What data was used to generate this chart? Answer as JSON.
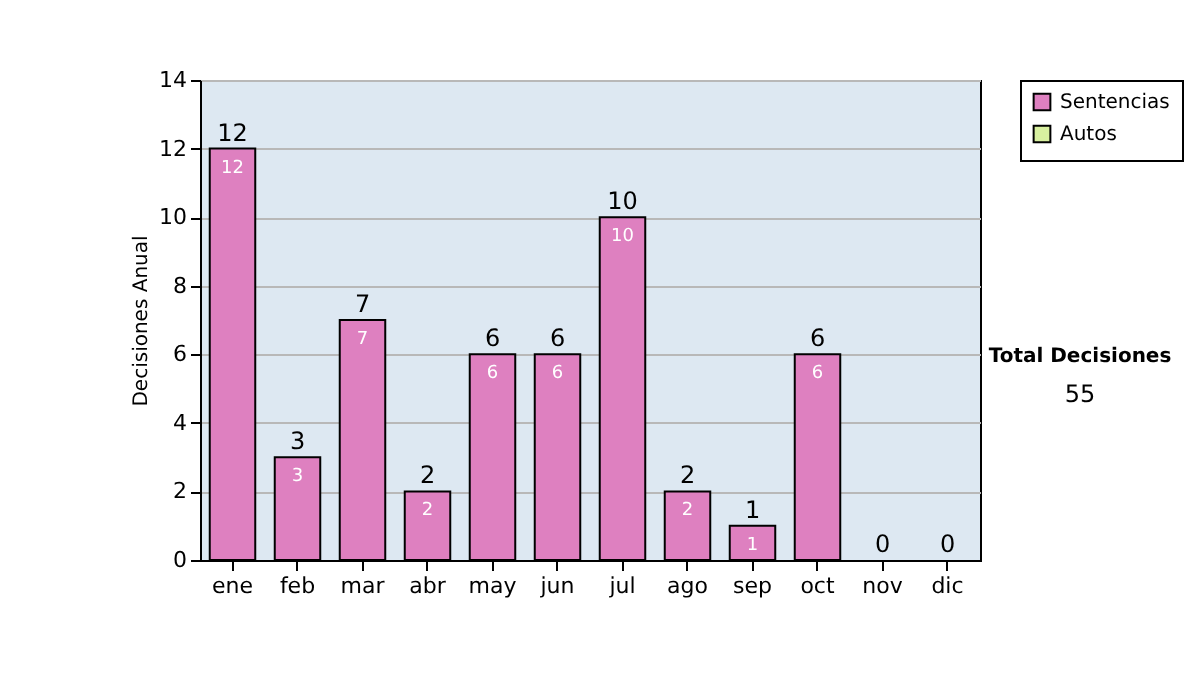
{
  "chart_data": {
    "type": "bar",
    "stacked": true,
    "ylabel": "Decisiones Anual",
    "categories": [
      "ene",
      "feb",
      "mar",
      "abr",
      "may",
      "jun",
      "jul",
      "ago",
      "sep",
      "oct",
      "nov",
      "dic"
    ],
    "series": [
      {
        "name": "Sentencias",
        "color": "#de80c0",
        "values": [
          12,
          3,
          7,
          2,
          6,
          6,
          10,
          2,
          1,
          6,
          0,
          0
        ],
        "value_labels": [
          "12",
          "3",
          "7",
          "2",
          "6",
          "6",
          "10",
          "2",
          "1",
          "6",
          null,
          null
        ]
      },
      {
        "name": "Autos",
        "color": "#d8f0a0",
        "values": [
          0,
          0,
          0,
          0,
          0,
          0,
          0,
          0,
          0,
          0,
          0,
          0
        ]
      }
    ],
    "totals": [
      "12",
      "3",
      "7",
      "2",
      "6",
      "6",
      "10",
      "2",
      "1",
      "6",
      "0",
      "0"
    ],
    "ylim": [
      0,
      14
    ],
    "yticks": [
      0,
      2,
      4,
      6,
      8,
      10,
      12,
      14
    ],
    "grid": "y",
    "legend": "right",
    "annotations": [
      "Total Decisiones",
      "55"
    ]
  }
}
